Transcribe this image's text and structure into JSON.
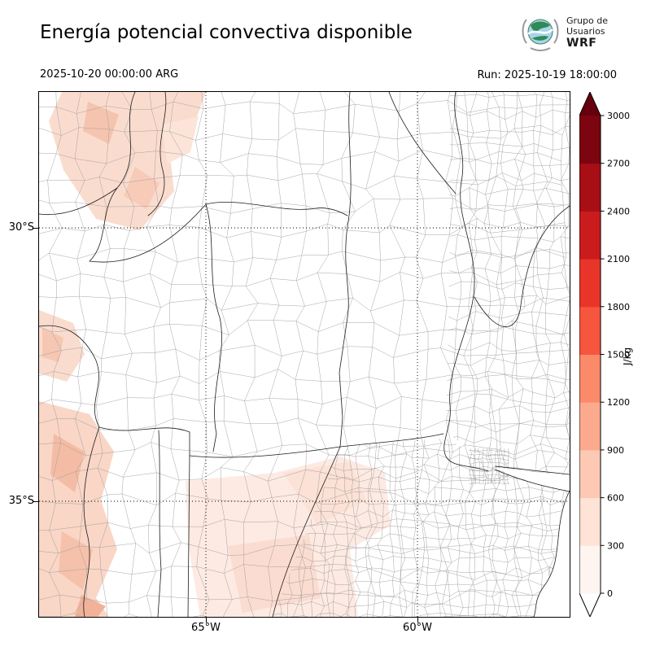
{
  "header": {
    "title": "Energía potencial convectiva disponible",
    "logo": {
      "line1": "Grupo de",
      "line2": "Usuarios",
      "line3": "WRF",
      "icon": "globe-earth"
    },
    "valid_time": "2025-10-20 00:00:00 ARG",
    "run_label": "Run: 2025-10-19 18:00:00"
  },
  "map": {
    "lat_ticks": [
      "30°S",
      "35°S"
    ],
    "lon_ticks": [
      "65°W",
      "60°W"
    ],
    "region": "central-northern Argentina with province and department boundaries",
    "shaded_regions": [
      {
        "area": "northwest (Catamarca / La Rioja)",
        "cape_range_jkg": "0-600"
      },
      {
        "area": "west edge (San Juan)",
        "cape_range_jkg": "0-300"
      },
      {
        "area": "southwest (Mendoza / Neuquén)",
        "cape_range_jkg": "0-600"
      },
      {
        "area": "south-central (La Pampa / SW Buenos Aires)",
        "cape_range_jkg": "0-300"
      }
    ]
  },
  "colorbar": {
    "unit": "J/kg",
    "ticks": [
      0,
      300,
      600,
      900,
      1200,
      1500,
      1800,
      2100,
      2400,
      2700,
      3000
    ],
    "colors": [
      "#fff5f0",
      "#fee3d6",
      "#fdc9b4",
      "#fcaa8e",
      "#fb8a6b",
      "#f6563e",
      "#e93529",
      "#cb1c1d",
      "#a80f15",
      "#7c0510"
    ],
    "arrow_over_color": "#67000d",
    "arrow_under_color": "#ffffff"
  }
}
